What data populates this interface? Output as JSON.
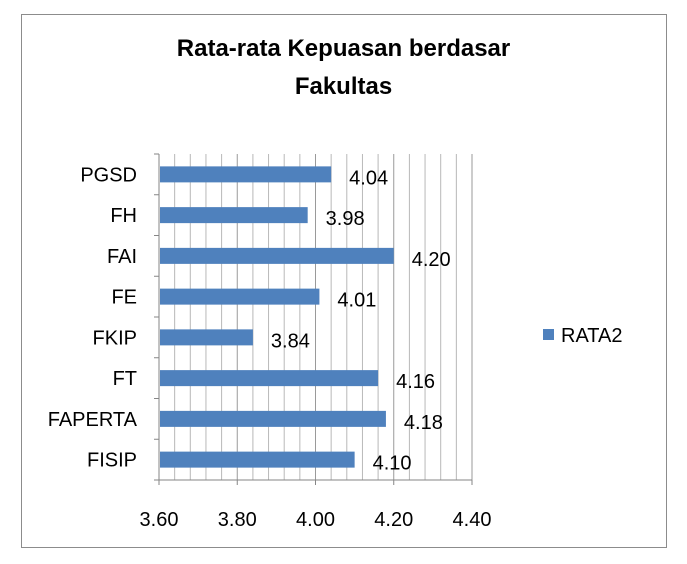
{
  "chart_data": {
    "type": "bar",
    "orientation": "horizontal",
    "title": "Rata-rata Kepuasan berdasar\nFakultas",
    "categories": [
      "PGSD",
      "FH",
      "FAI",
      "FE",
      "FKIP",
      "FT",
      "FAPERTA",
      "FISIP"
    ],
    "series": [
      {
        "name": "RATA2",
        "values": [
          4.04,
          3.98,
          4.2,
          4.01,
          3.84,
          4.16,
          4.18,
          4.1
        ],
        "color": "#4f81bd"
      }
    ],
    "data_labels": [
      "4.04",
      "3.98",
      "4.20",
      "4.01",
      "3.84",
      "4.16",
      "4.18",
      "4.10"
    ],
    "xlim": [
      3.6,
      4.4
    ],
    "x_ticks": [
      3.6,
      3.8,
      4.0,
      4.2,
      4.4
    ],
    "x_tick_labels": [
      "3.60",
      "3.80",
      "4.00",
      "4.20",
      "4.40"
    ],
    "x_minor_step": 0.04,
    "grid": true,
    "legend_position": "right"
  }
}
